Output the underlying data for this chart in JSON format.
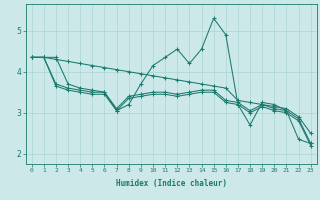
{
  "xlabel": "Humidex (Indice chaleur)",
  "bg_color": "#cce8e8",
  "line_color": "#1a7a6e",
  "grid_color": "#aad4d4",
  "xlim_min": -0.5,
  "xlim_max": 23.5,
  "ylim_min": 1.75,
  "ylim_max": 5.65,
  "xticks": [
    0,
    1,
    2,
    3,
    4,
    5,
    6,
    7,
    8,
    9,
    10,
    11,
    12,
    13,
    14,
    15,
    16,
    17,
    18,
    19,
    20,
    21,
    22,
    23
  ],
  "yticks": [
    2,
    3,
    4,
    5
  ],
  "line_spike": [
    4.35,
    4.35,
    4.35,
    3.7,
    3.6,
    3.55,
    3.5,
    3.05,
    3.2,
    3.7,
    4.15,
    4.35,
    4.55,
    4.2,
    4.55,
    5.3,
    4.9,
    3.2,
    2.7,
    3.25,
    3.2,
    3.05,
    2.35,
    2.25
  ],
  "line_top": [
    4.35,
    4.35,
    4.3,
    4.25,
    4.2,
    4.15,
    4.1,
    4.05,
    4.0,
    3.95,
    3.9,
    3.85,
    3.8,
    3.75,
    3.7,
    3.65,
    3.6,
    3.3,
    3.25,
    3.2,
    3.15,
    3.1,
    2.9,
    2.5
  ],
  "line_mid": [
    4.35,
    4.35,
    3.7,
    3.6,
    3.55,
    3.5,
    3.5,
    3.1,
    3.4,
    3.45,
    3.5,
    3.5,
    3.45,
    3.5,
    3.55,
    3.55,
    3.3,
    3.25,
    3.05,
    3.2,
    3.1,
    3.05,
    2.85,
    2.25
  ],
  "line_bot": [
    4.35,
    4.35,
    3.65,
    3.55,
    3.5,
    3.45,
    3.45,
    3.05,
    3.35,
    3.4,
    3.45,
    3.45,
    3.4,
    3.45,
    3.5,
    3.5,
    3.25,
    3.2,
    3.0,
    3.15,
    3.05,
    3.0,
    2.8,
    2.2
  ],
  "xtick_fontsize": 4.5,
  "ytick_fontsize": 5.5,
  "xlabel_fontsize": 5.5,
  "linewidth": 0.75,
  "markersize": 2.5,
  "markeredgewidth": 0.75
}
